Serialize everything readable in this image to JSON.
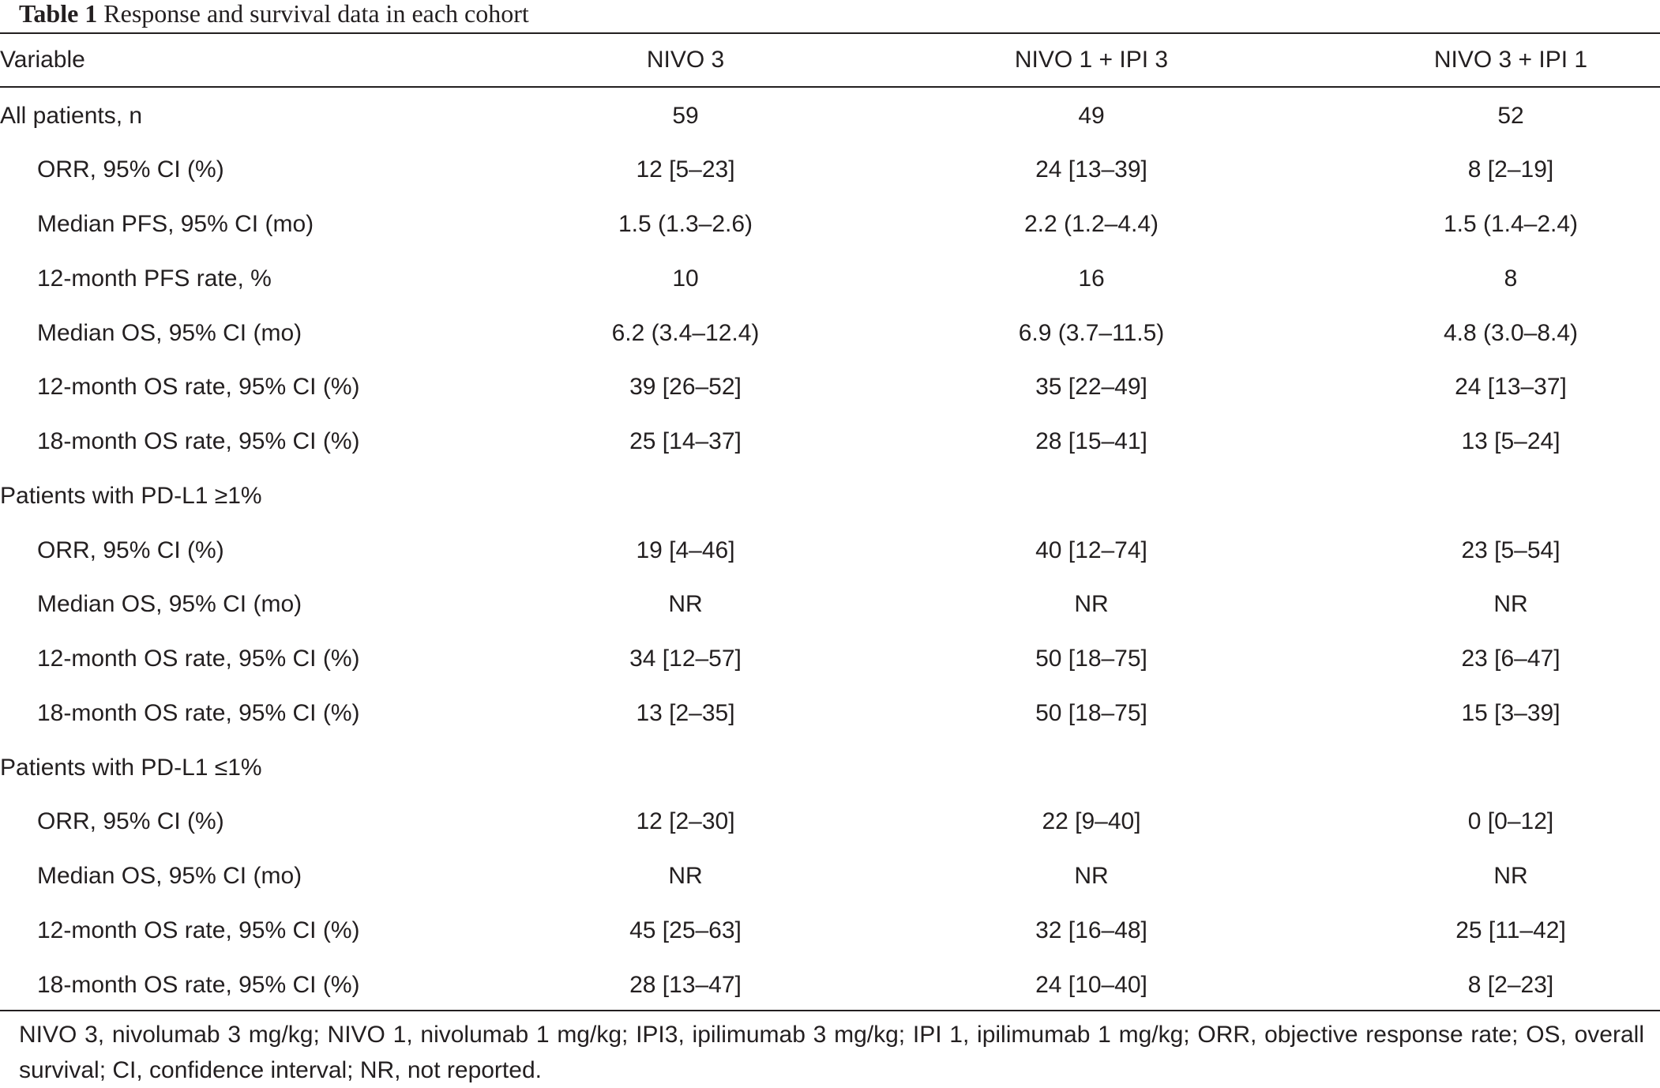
{
  "caption": {
    "label": "Table 1",
    "text": "Response and survival data in each cohort"
  },
  "headers": [
    "Variable",
    "NIVO 3",
    "NIVO 1 + IPI 3",
    "NIVO 3 + IPI 1"
  ],
  "rows": [
    {
      "label": "All patients, n",
      "values": [
        "59",
        "49",
        "52"
      ]
    },
    {
      "label": "ORR, 95% CI (%)",
      "values": [
        "12 [5–23]",
        "24 [13–39]",
        "8 [2–19]"
      ]
    },
    {
      "label": "Median PFS, 95% CI (mo)",
      "values": [
        "1.5 (1.3–2.6)",
        "2.2 (1.2–4.4)",
        "1.5 (1.4–2.4)"
      ]
    },
    {
      "label": "12-month PFS rate, %",
      "values": [
        "10",
        "16",
        "8"
      ]
    },
    {
      "label": "Median OS, 95% CI (mo)",
      "values": [
        "6.2 (3.4–12.4)",
        "6.9 (3.7–11.5)",
        "4.8 (3.0–8.4)"
      ]
    },
    {
      "label": "12-month OS rate, 95% CI (%)",
      "values": [
        "39 [26–52]",
        "35 [22–49]",
        "24 [13–37]"
      ]
    },
    {
      "label": "18-month OS rate, 95% CI (%)",
      "values": [
        "25 [14–37]",
        "28 [15–41]",
        "13 [5–24]"
      ]
    },
    {
      "label": "Patients with PD-L1 ≥1%",
      "values": [
        "",
        "",
        ""
      ]
    },
    {
      "label": "ORR, 95% CI (%)",
      "values": [
        "19 [4–46]",
        "40 [12–74]",
        "23 [5–54]"
      ]
    },
    {
      "label": "Median OS, 95% CI (mo)",
      "values": [
        "NR",
        "NR",
        "NR"
      ]
    },
    {
      "label": "12-month OS rate, 95% CI (%)",
      "values": [
        "34 [12–57]",
        "50 [18–75]",
        "23 [6–47]"
      ]
    },
    {
      "label": "18-month OS rate, 95% CI (%)",
      "values": [
        "13 [2–35]",
        "50 [18–75]",
        "15 [3–39]"
      ]
    },
    {
      "label": "Patients with PD-L1 ≤1%",
      "values": [
        "",
        "",
        ""
      ]
    },
    {
      "label": "ORR, 95% CI (%)",
      "values": [
        "12 [2–30]",
        "22 [9–40]",
        "0 [0–12]"
      ]
    },
    {
      "label": "Median OS, 95% CI (mo)",
      "values": [
        "NR",
        "NR",
        "NR"
      ]
    },
    {
      "label": "12-month OS rate, 95% CI (%)",
      "values": [
        "45 [25–63]",
        "32 [16–48]",
        "25 [11–42]"
      ]
    },
    {
      "label": "18-month OS rate, 95% CI (%)",
      "values": [
        "28 [13–47]",
        "24 [10–40]",
        "8 [2–23]"
      ]
    }
  ],
  "footnote": "NIVO 3, nivolumab 3 mg/kg; NIVO 1, nivolumab 1 mg/kg; IPI3, ipilimumab 3 mg/kg; IPI 1, ipilimumab 1 mg/kg; ORR, objective response rate; OS, overall survival; CI, confidence interval; NR, not reported."
}
